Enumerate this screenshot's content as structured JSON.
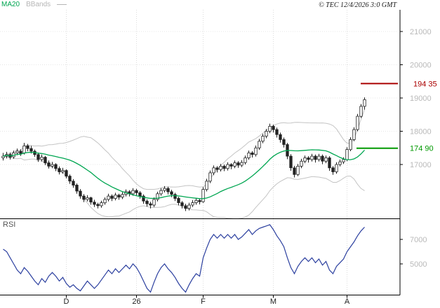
{
  "header": {
    "legend_ma20": "MA20",
    "legend_bbands": "BBands",
    "copyright": "© TEC 12/4/2026 3:0 GMT"
  },
  "rsi_label": "RSI",
  "colors": {
    "ma20": "#00a651",
    "bbands": "#c4c4c4",
    "rsi_line": "#2b3f9f",
    "candle": "#222222",
    "axis_label": "#b9b9b9",
    "month_label": "#222222",
    "frame": "#000000",
    "resistance": "#aa0000",
    "support": "#009900"
  },
  "chart_data": [
    {
      "type": "candlestick",
      "pane": "price",
      "title": "",
      "legend": [
        "MA20",
        "BBands"
      ],
      "ylim": [
        15380,
        21650
      ],
      "grid": true,
      "yticks": [
        {
          "value": 21000,
          "label": "21000"
        },
        {
          "value": 20000,
          "label": "20000"
        },
        {
          "value": 19000,
          "label": "19000"
        },
        {
          "value": 18000,
          "label": "18000"
        },
        {
          "value": 17000,
          "label": "17000"
        }
      ],
      "levels": [
        {
          "value": 19435,
          "label": "194 35",
          "color": "#aa0000"
        },
        {
          "value": 17490,
          "label": "174 90",
          "color": "#009900"
        }
      ],
      "x_labels": [
        {
          "label": "D",
          "index": 18
        },
        {
          "label": "26",
          "index": 38
        },
        {
          "label": "F",
          "index": 57
        },
        {
          "label": "M",
          "index": 77
        },
        {
          "label": "A",
          "index": 98
        }
      ],
      "indicators": {
        "ma_period": 20,
        "bb_period": 20,
        "bb_stddev": 2
      },
      "candles": [
        [
          17200,
          17350,
          17120,
          17250
        ],
        [
          17250,
          17380,
          17180,
          17300
        ],
        [
          17300,
          17360,
          17150,
          17220
        ],
        [
          17230,
          17420,
          17170,
          17350
        ],
        [
          17350,
          17480,
          17280,
          17400
        ],
        [
          17400,
          17460,
          17260,
          17330
        ],
        [
          17340,
          17650,
          17300,
          17560
        ],
        [
          17560,
          17620,
          17400,
          17480
        ],
        [
          17480,
          17560,
          17330,
          17400
        ],
        [
          17400,
          17450,
          17230,
          17300
        ],
        [
          17300,
          17360,
          17080,
          17150
        ],
        [
          17150,
          17300,
          17090,
          17220
        ],
        [
          17220,
          17260,
          16980,
          17050
        ],
        [
          17050,
          17120,
          16880,
          16950
        ],
        [
          16950,
          17080,
          16890,
          17000
        ],
        [
          17000,
          17040,
          16800,
          16880
        ],
        [
          16880,
          16940,
          16700,
          16780
        ],
        [
          16780,
          16900,
          16720,
          16820
        ],
        [
          16820,
          16860,
          16580,
          16650
        ],
        [
          16650,
          16700,
          16420,
          16500
        ],
        [
          16500,
          16560,
          16300,
          16380
        ],
        [
          16380,
          16430,
          16120,
          16200
        ],
        [
          16200,
          16260,
          15970,
          16050
        ],
        [
          16050,
          16110,
          15870,
          15950
        ],
        [
          15950,
          16080,
          15890,
          16000
        ],
        [
          16000,
          16030,
          15790,
          15870
        ],
        [
          15870,
          15940,
          15720,
          15800
        ],
        [
          15800,
          15850,
          15680,
          15760
        ],
        [
          15760,
          15910,
          15700,
          15850
        ],
        [
          15850,
          16010,
          15790,
          15950
        ],
        [
          15950,
          16120,
          15890,
          16050
        ],
        [
          16050,
          16100,
          15900,
          15980
        ],
        [
          15980,
          16150,
          15920,
          16080
        ],
        [
          16080,
          16120,
          15940,
          16020
        ],
        [
          16020,
          16170,
          15960,
          16100
        ],
        [
          16100,
          16250,
          16040,
          16180
        ],
        [
          16180,
          16230,
          16040,
          16120
        ],
        [
          16120,
          16290,
          16060,
          16220
        ],
        [
          16220,
          16270,
          16070,
          16150
        ],
        [
          16150,
          16200,
          15970,
          16050
        ],
        [
          16050,
          16100,
          15820,
          15900
        ],
        [
          15900,
          15950,
          15730,
          15820
        ],
        [
          15820,
          15880,
          15680,
          15780
        ],
        [
          15780,
          16010,
          15720,
          15950
        ],
        [
          15950,
          16180,
          15890,
          16120
        ],
        [
          16120,
          16290,
          16060,
          16220
        ],
        [
          16220,
          16350,
          16160,
          16280
        ],
        [
          16280,
          16330,
          16100,
          16180
        ],
        [
          16180,
          16240,
          16020,
          16100
        ],
        [
          16100,
          16150,
          15900,
          15980
        ],
        [
          15980,
          16030,
          15770,
          15850
        ],
        [
          15850,
          15900,
          15680,
          15760
        ],
        [
          15760,
          15820,
          15600,
          15680
        ],
        [
          15680,
          15850,
          15620,
          15780
        ],
        [
          15780,
          15930,
          15720,
          15850
        ],
        [
          15850,
          15990,
          15790,
          15920
        ],
        [
          15920,
          15970,
          15800,
          15880
        ],
        [
          15880,
          16320,
          15850,
          16250
        ],
        [
          16250,
          16570,
          16190,
          16500
        ],
        [
          16500,
          16820,
          16440,
          16750
        ],
        [
          16750,
          16970,
          16680,
          16900
        ],
        [
          16900,
          16950,
          16760,
          16850
        ],
        [
          16850,
          17020,
          16790,
          16950
        ],
        [
          16950,
          17000,
          16800,
          16880
        ],
        [
          16880,
          17070,
          16820,
          17000
        ],
        [
          17000,
          17040,
          16860,
          16950
        ],
        [
          16950,
          17120,
          16890,
          17050
        ],
        [
          17050,
          17100,
          16900,
          16980
        ],
        [
          16980,
          17130,
          16920,
          17060
        ],
        [
          17060,
          17270,
          17000,
          17200
        ],
        [
          17200,
          17420,
          17140,
          17350
        ],
        [
          17350,
          17400,
          17210,
          17300
        ],
        [
          17300,
          17570,
          17240,
          17500
        ],
        [
          17500,
          17770,
          17440,
          17700
        ],
        [
          17700,
          17920,
          17640,
          17850
        ],
        [
          17850,
          18070,
          17790,
          18000
        ],
        [
          18000,
          18230,
          17940,
          18150
        ],
        [
          18150,
          18200,
          17960,
          18050
        ],
        [
          18050,
          18110,
          17810,
          17900
        ],
        [
          17900,
          17960,
          17660,
          17750
        ],
        [
          17750,
          17810,
          17510,
          17600
        ],
        [
          17600,
          17650,
          17160,
          17250
        ],
        [
          17250,
          17310,
          16810,
          16900
        ],
        [
          16900,
          16960,
          16610,
          16700
        ],
        [
          16700,
          17020,
          16650,
          16950
        ],
        [
          16950,
          17170,
          16890,
          17100
        ],
        [
          17100,
          17270,
          17040,
          17200
        ],
        [
          17200,
          17250,
          17060,
          17150
        ],
        [
          17150,
          17320,
          17090,
          17250
        ],
        [
          17250,
          17300,
          17060,
          17150
        ],
        [
          17150,
          17320,
          17090,
          17250
        ],
        [
          17250,
          17300,
          17010,
          17100
        ],
        [
          17100,
          17270,
          17040,
          17200
        ],
        [
          17200,
          17250,
          16810,
          16900
        ],
        [
          16900,
          16950,
          16690,
          16780
        ],
        [
          16780,
          17070,
          16720,
          17000
        ],
        [
          17000,
          17150,
          16940,
          17080
        ],
        [
          17080,
          17220,
          17020,
          17150
        ],
        [
          17150,
          17520,
          17100,
          17450
        ],
        [
          17450,
          17820,
          17400,
          17750
        ],
        [
          17750,
          18120,
          17700,
          18050
        ],
        [
          18050,
          18520,
          18000,
          18450
        ],
        [
          18450,
          18820,
          18400,
          18750
        ],
        [
          18750,
          19020,
          18650,
          18950
        ]
      ]
    },
    {
      "type": "line",
      "pane": "rsi",
      "title": "RSI",
      "ylim": [
        25,
        86
      ],
      "yticks": [
        {
          "value": 70,
          "label": "7000"
        },
        {
          "value": 50,
          "label": "5000"
        }
      ],
      "values": [
        62,
        60,
        55,
        50,
        45,
        42,
        47,
        44,
        40,
        36,
        33,
        38,
        35,
        40,
        43,
        40,
        36,
        39,
        34,
        31,
        33,
        30,
        28,
        32,
        36,
        33,
        30,
        33,
        37,
        41,
        45,
        42,
        46,
        43,
        46,
        49,
        46,
        50,
        47,
        42,
        36,
        30,
        27,
        35,
        42,
        47,
        50,
        46,
        43,
        39,
        34,
        30,
        27,
        33,
        38,
        42,
        40,
        55,
        63,
        70,
        74,
        71,
        74,
        71,
        74,
        71,
        74,
        70,
        72,
        75,
        78,
        74,
        77,
        79,
        80,
        81,
        82,
        78,
        73,
        69,
        64,
        55,
        47,
        42,
        48,
        52,
        55,
        52,
        55,
        51,
        54,
        49,
        52,
        45,
        42,
        48,
        51,
        54,
        60,
        64,
        68,
        73,
        77,
        80
      ]
    }
  ]
}
